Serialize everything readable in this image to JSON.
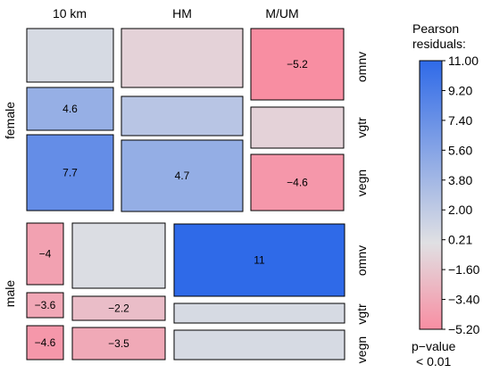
{
  "chart_data": {
    "type": "mosaic",
    "columns": [
      "10 km",
      "HM",
      "M/UM"
    ],
    "rows": [
      "female",
      "male"
    ],
    "subrows": [
      "omnv",
      "vgtr",
      "vegn"
    ],
    "cells": [
      {
        "row": "female",
        "column": "10 km",
        "subrow": "omnv",
        "residual": 0.6,
        "label": ""
      },
      {
        "row": "female",
        "column": "10 km",
        "subrow": "vgtr",
        "residual": 4.6,
        "label": "4.6"
      },
      {
        "row": "female",
        "column": "10 km",
        "subrow": "vegn",
        "residual": 7.7,
        "label": "7.7"
      },
      {
        "row": "female",
        "column": "HM",
        "subrow": "omnv",
        "residual": -0.9,
        "label": ""
      },
      {
        "row": "female",
        "column": "HM",
        "subrow": "vgtr",
        "residual": 2.5,
        "label": ""
      },
      {
        "row": "female",
        "column": "HM",
        "subrow": "vegn",
        "residual": 4.7,
        "label": "4.7"
      },
      {
        "row": "female",
        "column": "M/UM",
        "subrow": "omnv",
        "residual": -5.2,
        "label": "−5.2"
      },
      {
        "row": "female",
        "column": "M/UM",
        "subrow": "vgtr",
        "residual": -0.9,
        "label": ""
      },
      {
        "row": "female",
        "column": "M/UM",
        "subrow": "vegn",
        "residual": -4.6,
        "label": "−4.6"
      },
      {
        "row": "male",
        "column": "10 km",
        "subrow": "omnv",
        "residual": -4.0,
        "label": "−4"
      },
      {
        "row": "male",
        "column": "10 km",
        "subrow": "vgtr",
        "residual": -3.6,
        "label": "−3.6"
      },
      {
        "row": "male",
        "column": "10 km",
        "subrow": "vegn",
        "residual": -4.6,
        "label": "−4.6"
      },
      {
        "row": "male",
        "column": "HM",
        "subrow": "omnv",
        "residual": 0.3,
        "label": ""
      },
      {
        "row": "male",
        "column": "HM",
        "subrow": "vgtr",
        "residual": -2.2,
        "label": "−2.2"
      },
      {
        "row": "male",
        "column": "HM",
        "subrow": "vegn",
        "residual": -3.5,
        "label": "−3.5"
      },
      {
        "row": "male",
        "column": "M/UM",
        "subrow": "omnv",
        "residual": 11.0,
        "label": "11"
      },
      {
        "row": "male",
        "column": "M/UM",
        "subrow": "vgtr",
        "residual": 0.6,
        "label": ""
      },
      {
        "row": "male",
        "column": "M/UM",
        "subrow": "vegn",
        "residual": 0.6,
        "label": ""
      }
    ],
    "legend": {
      "title": [
        "Pearson",
        "residuals:"
      ],
      "ticks": [
        "11.00",
        "9.20",
        "7.40",
        "5.60",
        "3.80",
        "2.00",
        "0.21",
        "−1.60",
        "−3.40",
        "−5.20"
      ],
      "range": [
        -5.2,
        11.0
      ],
      "pvalue": [
        "p−value",
        "< 0.01"
      ]
    },
    "colors": {
      "positive": "#2f6ae8",
      "neutral": "#e0e0e3",
      "negative": "#f88ea2"
    }
  }
}
